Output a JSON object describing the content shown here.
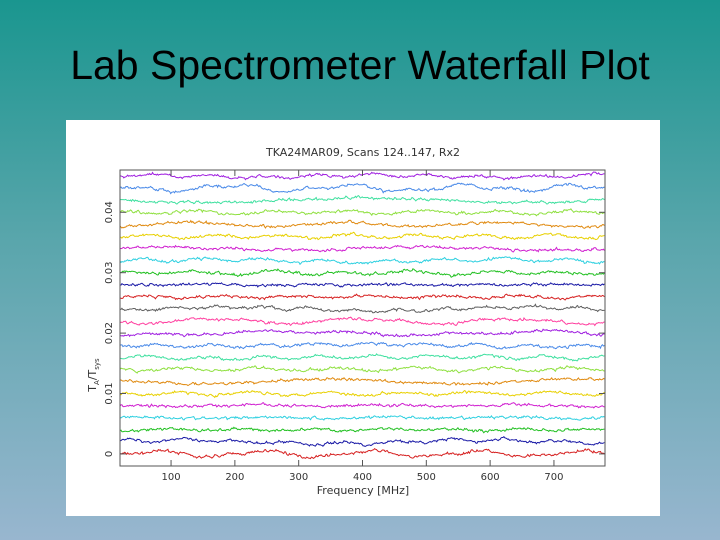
{
  "slide": {
    "title": "Lab Spectrometer Waterfall Plot"
  },
  "chart_data": {
    "type": "line",
    "title": "TKA24MAR09, Scans 124..147, Rx2",
    "xlabel": "Frequency [MHz]",
    "ylabel": "T_A/T_sys",
    "xlim": [
      20,
      780
    ],
    "ylim": [
      -0.002,
      0.047
    ],
    "xticks": [
      100,
      200,
      300,
      400,
      500,
      600,
      700
    ],
    "yticks": [
      0,
      0.01,
      0.02,
      0.03,
      0.04
    ],
    "ytick_labels": [
      "0",
      "0.01",
      "0.02",
      "0.03",
      "0.04"
    ],
    "grid": false,
    "legend": "none",
    "scan_start": 124,
    "scan_end": 147,
    "offset_step": 0.002,
    "noise_rms": 0.00045,
    "colors": [
      "#d62020",
      "#1a1aa6",
      "#22c022",
      "#2fd0e0",
      "#d020d0",
      "#e8d000",
      "#e08a10",
      "#8fe040",
      "#40e0a0",
      "#4a8ae8",
      "#a020e0",
      "#ff40a0",
      "#606060"
    ]
  }
}
